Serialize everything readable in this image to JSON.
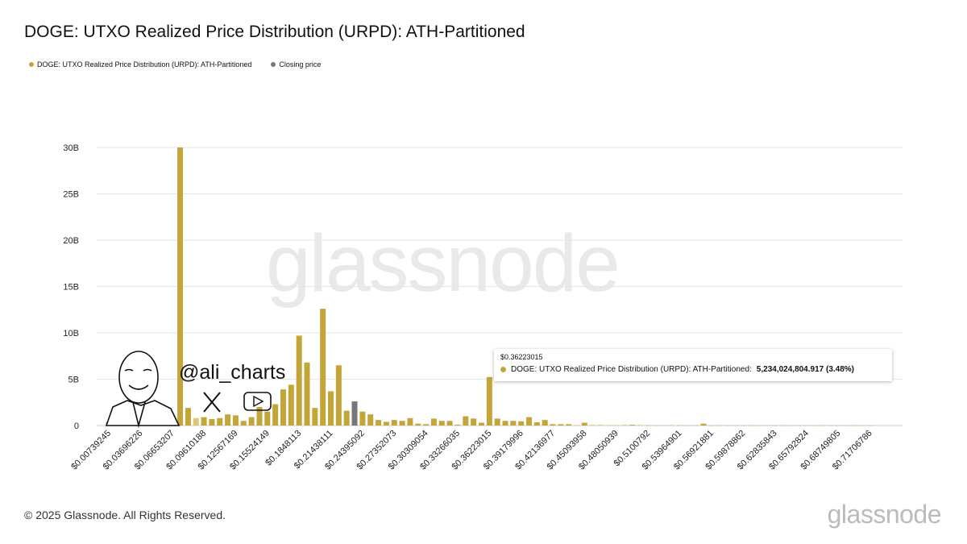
{
  "title": "DOGE: UTXO Realized Price Distribution (URPD): ATH-Partitioned",
  "legend": [
    {
      "label": "DOGE: UTXO Realized Price Distribution (URPD): ATH-Partitioned",
      "color": "#c4a53a"
    },
    {
      "label": "Closing price",
      "color": "#777777"
    }
  ],
  "watermark": "glassnode",
  "author_handle": "@ali_charts",
  "footer": "© 2025 Glassnode. All Rights Reserved.",
  "brand": "glassnode",
  "tooltip": {
    "price": "$0.36223015",
    "series": "DOGE: UTXO Realized Price Distribution (URPD): ATH-Partitioned:",
    "value": "5,234,024,804.917 (3.48%)"
  },
  "chart_data": {
    "type": "bar",
    "title": "DOGE: UTXO Realized Price Distribution (URPD): ATH-Partitioned",
    "ylim": [
      0,
      30
    ],
    "yunit": "B",
    "yticks": [
      "0",
      "5B",
      "10B",
      "15B",
      "20B",
      "25B",
      "30B"
    ],
    "grid": true,
    "legend_placement": "top-left",
    "bin_start": 0.00739245,
    "bin_width": 0.00739245,
    "closing_price_bin": 31,
    "xtick_labels": [
      "$0.00739245",
      "$0.03696226",
      "$0.06653207",
      "$0.09610188",
      "$0.12567169",
      "$0.15524149",
      "$0.1848113",
      "$0.21438111",
      "$0.24395092",
      "$0.27352073",
      "$0.30309054",
      "$0.33266035",
      "$0.36223015",
      "$0.39179996",
      "$0.42136977",
      "$0.45093958",
      "$0.48050939",
      "$0.5100792",
      "$0.53964901",
      "$0.56921881",
      "$0.59878862",
      "$0.62835843",
      "$0.65792824",
      "$0.68749805",
      "$0.71706786"
    ],
    "values": [
      0.4,
      0.05,
      0.05,
      0.05,
      0.1,
      0.1,
      0.1,
      0.7,
      1.0,
      30.0,
      1.9,
      0.8,
      0.9,
      0.7,
      0.8,
      1.2,
      1.1,
      0.5,
      0.9,
      2.0,
      1.5,
      2.3,
      3.9,
      4.4,
      9.7,
      6.8,
      1.9,
      12.6,
      3.7,
      6.5,
      1.6,
      2.6,
      1.5,
      1.2,
      0.6,
      0.4,
      0.6,
      0.5,
      0.8,
      0.2,
      0.15,
      0.75,
      0.5,
      0.5,
      0.1,
      1.0,
      0.75,
      0.3,
      5.234,
      0.75,
      0.5,
      0.5,
      0.45,
      0.9,
      0.35,
      0.6,
      0.15,
      0.15,
      0.15,
      0.03,
      0.3,
      0.05,
      0.05,
      0.03,
      0.03,
      0.05,
      0.08,
      0.03,
      0.02,
      0.02,
      0.02,
      0.03,
      0.02,
      0.02,
      0.02,
      0.2,
      0.02,
      0.02,
      0.02,
      0.02,
      0.02,
      0.02,
      0.02,
      0.02,
      0.02,
      0.02,
      0.02,
      0.02,
      0.02,
      0.02,
      0.02,
      0.02,
      0.02,
      0.02,
      0.02,
      0.02,
      0.02
    ],
    "colors": {
      "bar": "#c4a53a",
      "closing": "#777777"
    }
  }
}
